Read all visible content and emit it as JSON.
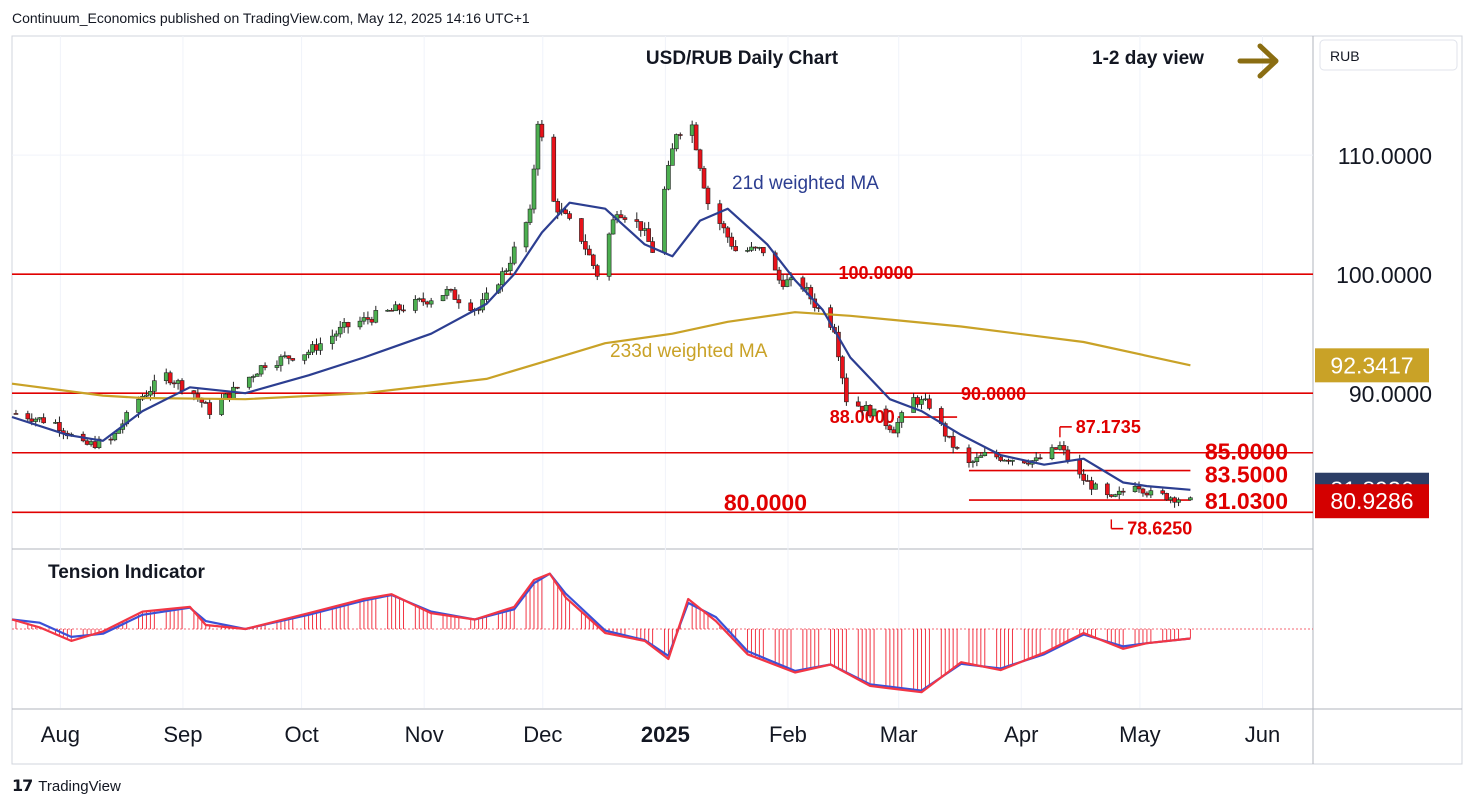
{
  "header": {
    "published": "Continuum_Economics published on TradingView.com, May 12, 2025 14:16 UTC+1"
  },
  "footer": {
    "brand": "TradingView",
    "logo_icon": "tradingview-logo-icon"
  },
  "colors": {
    "bull": "#4caf50",
    "bear": "#e8121a",
    "ma21": "#2c3e91",
    "ma233": "#c9a227",
    "level": "#e00000",
    "tension_red": "#f23645",
    "tension_blue": "#3b50d6",
    "arrow": "#8a6d12",
    "price_dark": "#2c3e66",
    "price_red": "#d40000"
  },
  "chart_data": [
    {
      "type": "candlestick",
      "title": "USD/RUB Daily Chart",
      "subtitle": "1-2 day view",
      "view_arrow_icon": "arrow-right-icon",
      "currency_label": "RUB",
      "x_ticks": [
        "Aug",
        "Sep",
        "Oct",
        "Nov",
        "Dec",
        "2025",
        "Feb",
        "Mar",
        "Apr",
        "May",
        "Jun"
      ],
      "y_ticks": [
        110,
        100,
        90
      ],
      "y_tick_labels": [
        "110.0000",
        "100.0000",
        "90.0000"
      ],
      "ylim": [
        77,
        120
      ],
      "x_range": [
        "2024-07-18",
        "2025-06-12"
      ],
      "price_badges": [
        {
          "label": "92.3417",
          "value": 92.3417,
          "style": "ma233"
        },
        {
          "label": "81.8936",
          "value": 81.8936,
          "style": "ma21"
        },
        {
          "label": "80.9286",
          "value": 80.9286,
          "style": "last"
        }
      ],
      "levels": [
        {
          "value": 100.0,
          "label": "100.0000",
          "from": "2024-07-18",
          "to": "2025-06-12"
        },
        {
          "value": 90.0,
          "label": "90.0000",
          "from": "2024-07-18",
          "to": "2025-06-12"
        },
        {
          "value": 85.0,
          "label": "85.0000",
          "from": "2024-07-18",
          "to": "2025-06-12"
        },
        {
          "value": 80.0,
          "label": "80.0000",
          "from": "2024-07-18",
          "to": "2025-06-12"
        },
        {
          "value": 88.0,
          "label": "88.0000",
          "from": "2025-02-27",
          "to": "2025-03-14"
        },
        {
          "value": 87.1735,
          "label": "87.1735",
          "from": "2025-04-09",
          "to": "2025-04-12"
        },
        {
          "value": 83.5,
          "label": "83.5000",
          "from": "2025-03-17",
          "to": "2025-05-12"
        },
        {
          "value": 81.03,
          "label": "81.0300",
          "from": "2025-03-17",
          "to": "2025-05-12"
        },
        {
          "value": 78.625,
          "label": "78.6250",
          "from": "2025-04-22",
          "to": "2025-04-25"
        }
      ],
      "series": [
        {
          "name": "21d weighted MA",
          "x": [
            "2024-07-18",
            "2024-08-01",
            "2024-08-10",
            "2024-08-20",
            "2024-09-01",
            "2024-09-15",
            "2024-10-01",
            "2024-10-15",
            "2024-11-01",
            "2024-11-15",
            "2024-11-22",
            "2024-11-29",
            "2024-12-06",
            "2024-12-15",
            "2024-12-25",
            "2025-01-01",
            "2025-01-08",
            "2025-01-15",
            "2025-01-25",
            "2025-02-01",
            "2025-02-08",
            "2025-02-15",
            "2025-02-25",
            "2025-03-05",
            "2025-03-15",
            "2025-03-25",
            "2025-04-05",
            "2025-04-15",
            "2025-04-25",
            "2025-05-01",
            "2025-05-12"
          ],
          "values": [
            88.0,
            86.5,
            86.0,
            88.5,
            90.5,
            90.0,
            91.5,
            93.0,
            95.0,
            97.5,
            100.0,
            103.5,
            106.0,
            105.5,
            102.5,
            101.5,
            104.5,
            105.5,
            102.5,
            99.5,
            97.0,
            93.0,
            89.5,
            88.5,
            86.5,
            84.8,
            84.0,
            84.5,
            82.5,
            82.2,
            81.89
          ]
        },
        {
          "name": "233d weighted MA",
          "x": [
            "2024-07-18",
            "2024-08-10",
            "2024-08-20",
            "2024-09-15",
            "2024-10-15",
            "2024-11-15",
            "2024-12-01",
            "2024-12-15",
            "2025-01-01",
            "2025-01-15",
            "2025-02-01",
            "2025-02-15",
            "2025-03-15",
            "2025-04-15",
            "2025-05-12"
          ],
          "values": [
            90.8,
            89.8,
            89.6,
            89.5,
            90.0,
            91.2,
            92.8,
            94.2,
            95.0,
            96.0,
            96.8,
            96.5,
            95.6,
            94.3,
            92.34
          ]
        }
      ]
    },
    {
      "type": "area",
      "title": "Tension Indicator",
      "ylim": [
        -1.0,
        1.0
      ],
      "series": [
        {
          "name": "Tension Indicator",
          "x": [
            "2024-07-18",
            "2024-07-25",
            "2024-08-02",
            "2024-08-10",
            "2024-08-20",
            "2024-09-01",
            "2024-09-05",
            "2024-09-15",
            "2024-10-01",
            "2024-10-15",
            "2024-10-22",
            "2024-11-01",
            "2024-11-12",
            "2024-11-22",
            "2024-11-27",
            "2024-12-01",
            "2024-12-05",
            "2024-12-15",
            "2024-12-25",
            "2024-12-31",
            "2025-01-05",
            "2025-01-12",
            "2025-01-20",
            "2025-02-01",
            "2025-02-10",
            "2025-02-20",
            "2025-03-05",
            "2025-03-15",
            "2025-03-25",
            "2025-04-05",
            "2025-04-15",
            "2025-04-25",
            "2025-05-01",
            "2025-05-12"
          ],
          "values": [
            0.12,
            0.02,
            -0.15,
            -0.03,
            0.22,
            0.28,
            0.05,
            0.0,
            0.2,
            0.38,
            0.44,
            0.2,
            0.12,
            0.28,
            0.62,
            0.7,
            0.4,
            -0.05,
            -0.15,
            -0.38,
            0.38,
            0.1,
            -0.32,
            -0.55,
            -0.45,
            -0.72,
            -0.8,
            -0.42,
            -0.52,
            -0.3,
            -0.05,
            -0.25,
            -0.18,
            -0.12
          ]
        },
        {
          "name": "Tension Indicator signal",
          "x": [
            "2024-07-18",
            "2024-07-25",
            "2024-08-02",
            "2024-08-10",
            "2024-08-20",
            "2024-09-01",
            "2024-09-05",
            "2024-09-15",
            "2024-10-01",
            "2024-10-15",
            "2024-10-22",
            "2024-11-01",
            "2024-11-12",
            "2024-11-22",
            "2024-11-27",
            "2024-12-01",
            "2024-12-05",
            "2024-12-15",
            "2024-12-25",
            "2024-12-31",
            "2025-01-05",
            "2025-01-12",
            "2025-01-20",
            "2025-02-01",
            "2025-02-10",
            "2025-02-20",
            "2025-03-05",
            "2025-03-15",
            "2025-03-25",
            "2025-04-05",
            "2025-04-15",
            "2025-04-25",
            "2025-05-01",
            "2025-05-12"
          ],
          "values": [
            0.12,
            0.08,
            -0.1,
            -0.06,
            0.18,
            0.27,
            0.1,
            0.0,
            0.18,
            0.36,
            0.43,
            0.22,
            0.12,
            0.25,
            0.58,
            0.7,
            0.45,
            -0.02,
            -0.14,
            -0.34,
            0.33,
            0.15,
            -0.28,
            -0.53,
            -0.45,
            -0.7,
            -0.78,
            -0.44,
            -0.5,
            -0.32,
            -0.07,
            -0.22,
            -0.18,
            -0.12
          ]
        }
      ]
    }
  ]
}
